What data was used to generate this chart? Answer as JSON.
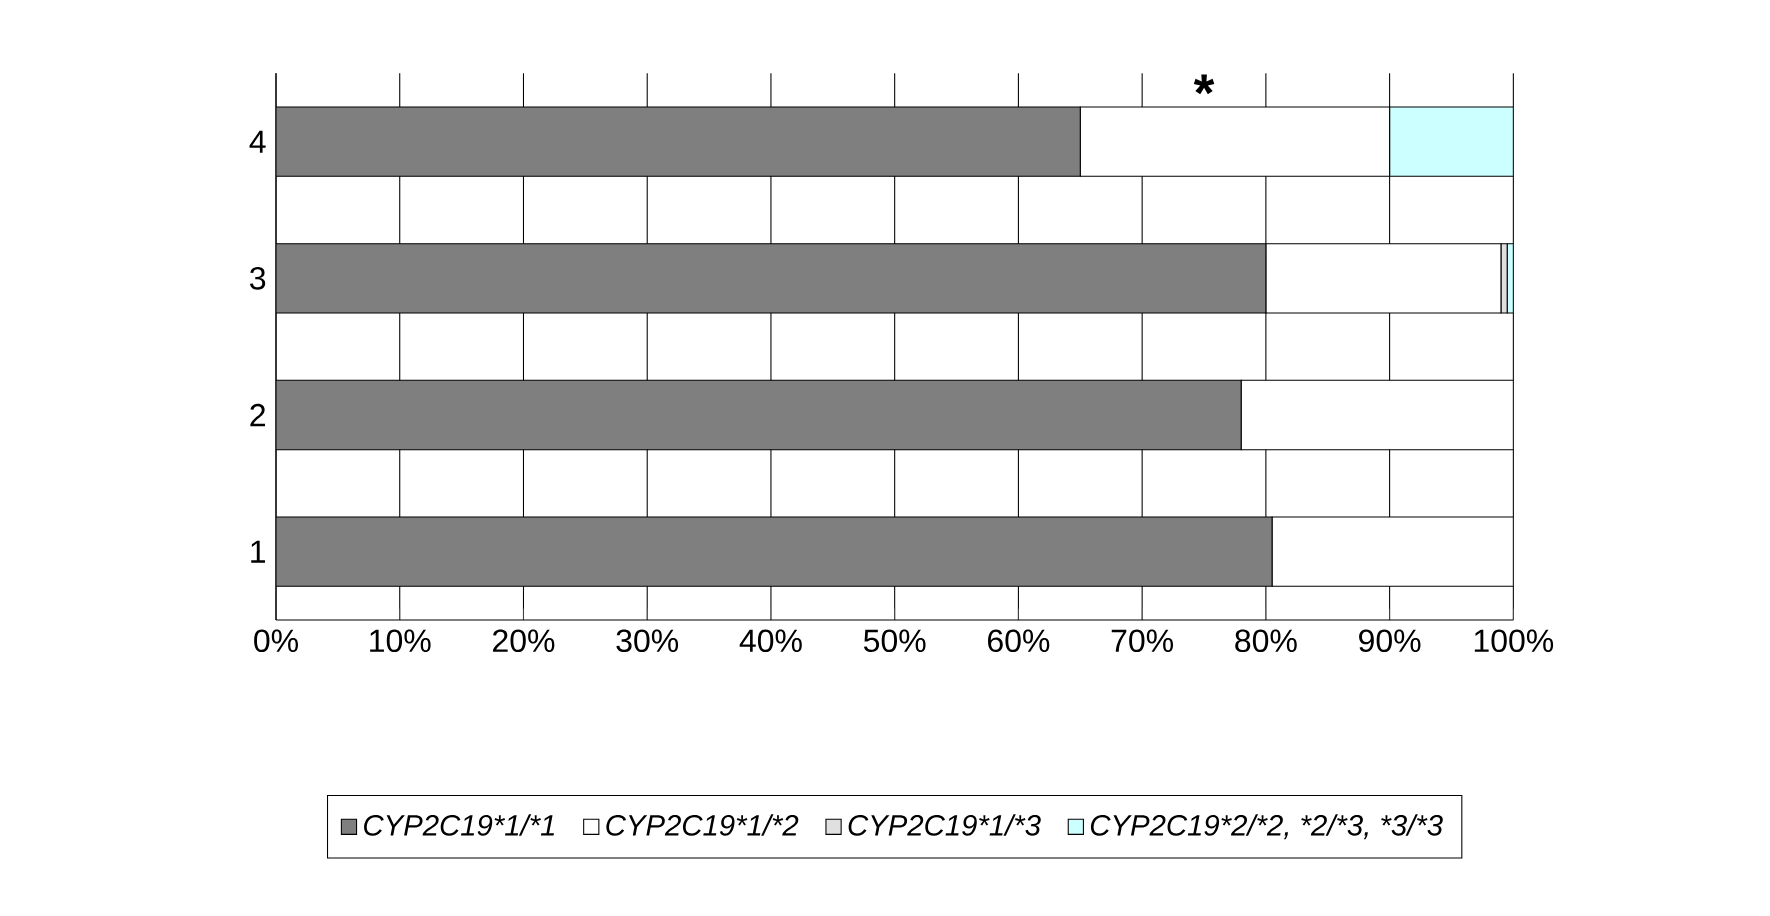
{
  "chart_data": {
    "type": "bar",
    "orientation": "horizontal",
    "stacked": true,
    "categories": [
      "4",
      "3",
      "2",
      "1"
    ],
    "series": [
      {
        "name": "CYP2C19*1/*1",
        "color": "#7f7f7f",
        "values": [
          65,
          80,
          78,
          80.5
        ]
      },
      {
        "name": "CYP2C19*1/*2",
        "color": "#ffffff",
        "values": [
          25,
          19,
          22,
          19.5
        ]
      },
      {
        "name": "CYP2C19*1/*3",
        "color": "#e0e0e0",
        "values": [
          0,
          0.5,
          0,
          0
        ]
      },
      {
        "name": "CYP2C19*2/*2, *2/*3, *3/*3",
        "color": "#ccffff",
        "values": [
          10,
          0.5,
          0,
          0
        ]
      }
    ],
    "xlim": [
      0,
      100
    ],
    "xticks": [
      {
        "value": 0,
        "label": "0%"
      },
      {
        "value": 10,
        "label": "10%"
      },
      {
        "value": 20,
        "label": "20%"
      },
      {
        "value": 30,
        "label": "30%"
      },
      {
        "value": 40,
        "label": "40%"
      },
      {
        "value": 50,
        "label": "50%"
      },
      {
        "value": 60,
        "label": "60%"
      },
      {
        "value": 70,
        "label": "70%"
      },
      {
        "value": 80,
        "label": "80%"
      },
      {
        "value": 90,
        "label": "90%"
      },
      {
        "value": 100,
        "label": "100%"
      }
    ],
    "grid": "x",
    "legend": "bottom",
    "annotations": [
      "*"
    ]
  }
}
